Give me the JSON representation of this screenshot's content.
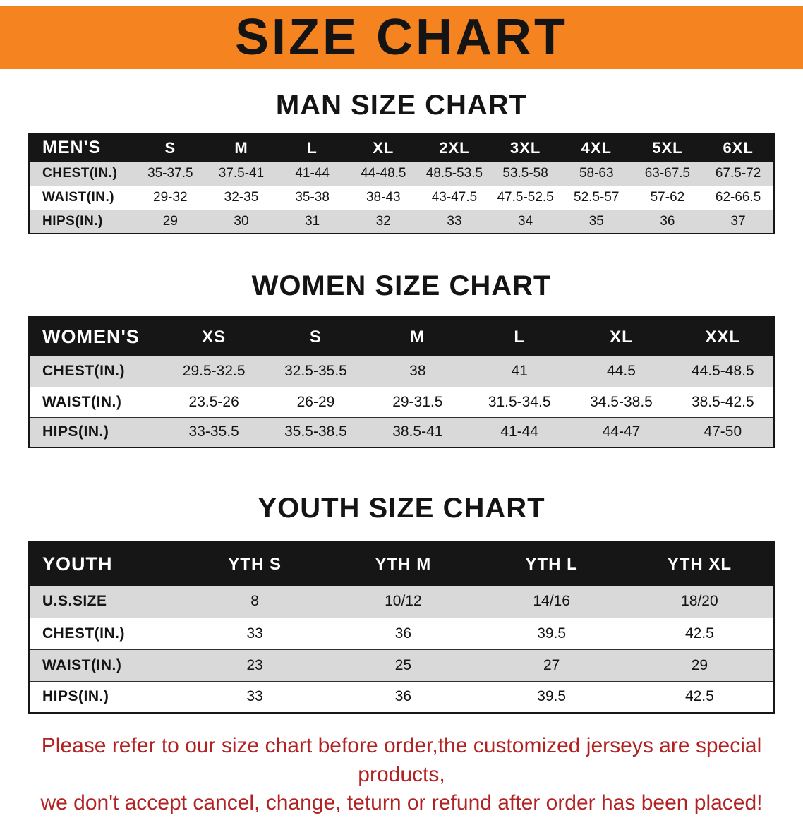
{
  "banner": {
    "title": "SIZE CHART"
  },
  "colors": {
    "banner_bg": "#f5831f",
    "header_bg": "#161616",
    "row_gray": "#d9d9d9",
    "note_red": "#b22222",
    "title_color": "#141414"
  },
  "sections": [
    {
      "title": "MAN SIZE CHART",
      "table": {
        "header": [
          "MEN'S",
          "S",
          "M",
          "L",
          "XL",
          "2XL",
          "3XL",
          "4XL",
          "5XL",
          "6XL"
        ],
        "rows": [
          [
            "CHEST(IN.)",
            "35-37.5",
            "37.5-41",
            "41-44",
            "44-48.5",
            "48.5-53.5",
            "53.5-58",
            "58-63",
            "63-67.5",
            "67.5-72"
          ],
          [
            "WAIST(IN.)",
            "29-32",
            "32-35",
            "35-38",
            "38-43",
            "43-47.5",
            "47.5-52.5",
            "52.5-57",
            "57-62",
            "62-66.5"
          ],
          [
            "HIPS(IN.)",
            "29",
            "30",
            "31",
            "32",
            "33",
            "34",
            "35",
            "36",
            "37"
          ]
        ]
      }
    },
    {
      "title": "WOMEN SIZE CHART",
      "table": {
        "header": [
          "WOMEN'S",
          "XS",
          "S",
          "M",
          "L",
          "XL",
          "XXL"
        ],
        "rows": [
          [
            "CHEST(IN.)",
            "29.5-32.5",
            "32.5-35.5",
            "38",
            "41",
            "44.5",
            "44.5-48.5"
          ],
          [
            "WAIST(IN.)",
            "23.5-26",
            "26-29",
            "29-31.5",
            "31.5-34.5",
            "34.5-38.5",
            "38.5-42.5"
          ],
          [
            "HIPS(IN.)",
            "33-35.5",
            "35.5-38.5",
            "38.5-41",
            "41-44",
            "44-47",
            "47-50"
          ]
        ]
      }
    },
    {
      "title": "YOUTH SIZE CHART",
      "table": {
        "header": [
          "YOUTH",
          "YTH S",
          "YTH M",
          "YTH L",
          "YTH XL"
        ],
        "rows": [
          [
            "U.S.SIZE",
            "8",
            "10/12",
            "14/16",
            "18/20"
          ],
          [
            "CHEST(IN.)",
            "33",
            "36",
            "39.5",
            "42.5"
          ],
          [
            "WAIST(IN.)",
            "23",
            "25",
            "27",
            "29"
          ],
          [
            "HIPS(IN.)",
            "33",
            "36",
            "39.5",
            "42.5"
          ]
        ]
      }
    }
  ],
  "footer": {
    "line1": "Please refer to our size chart before order,the customized jerseys are special products,",
    "line2": "we don't accept cancel, change, teturn or refund after order has been placed!"
  }
}
